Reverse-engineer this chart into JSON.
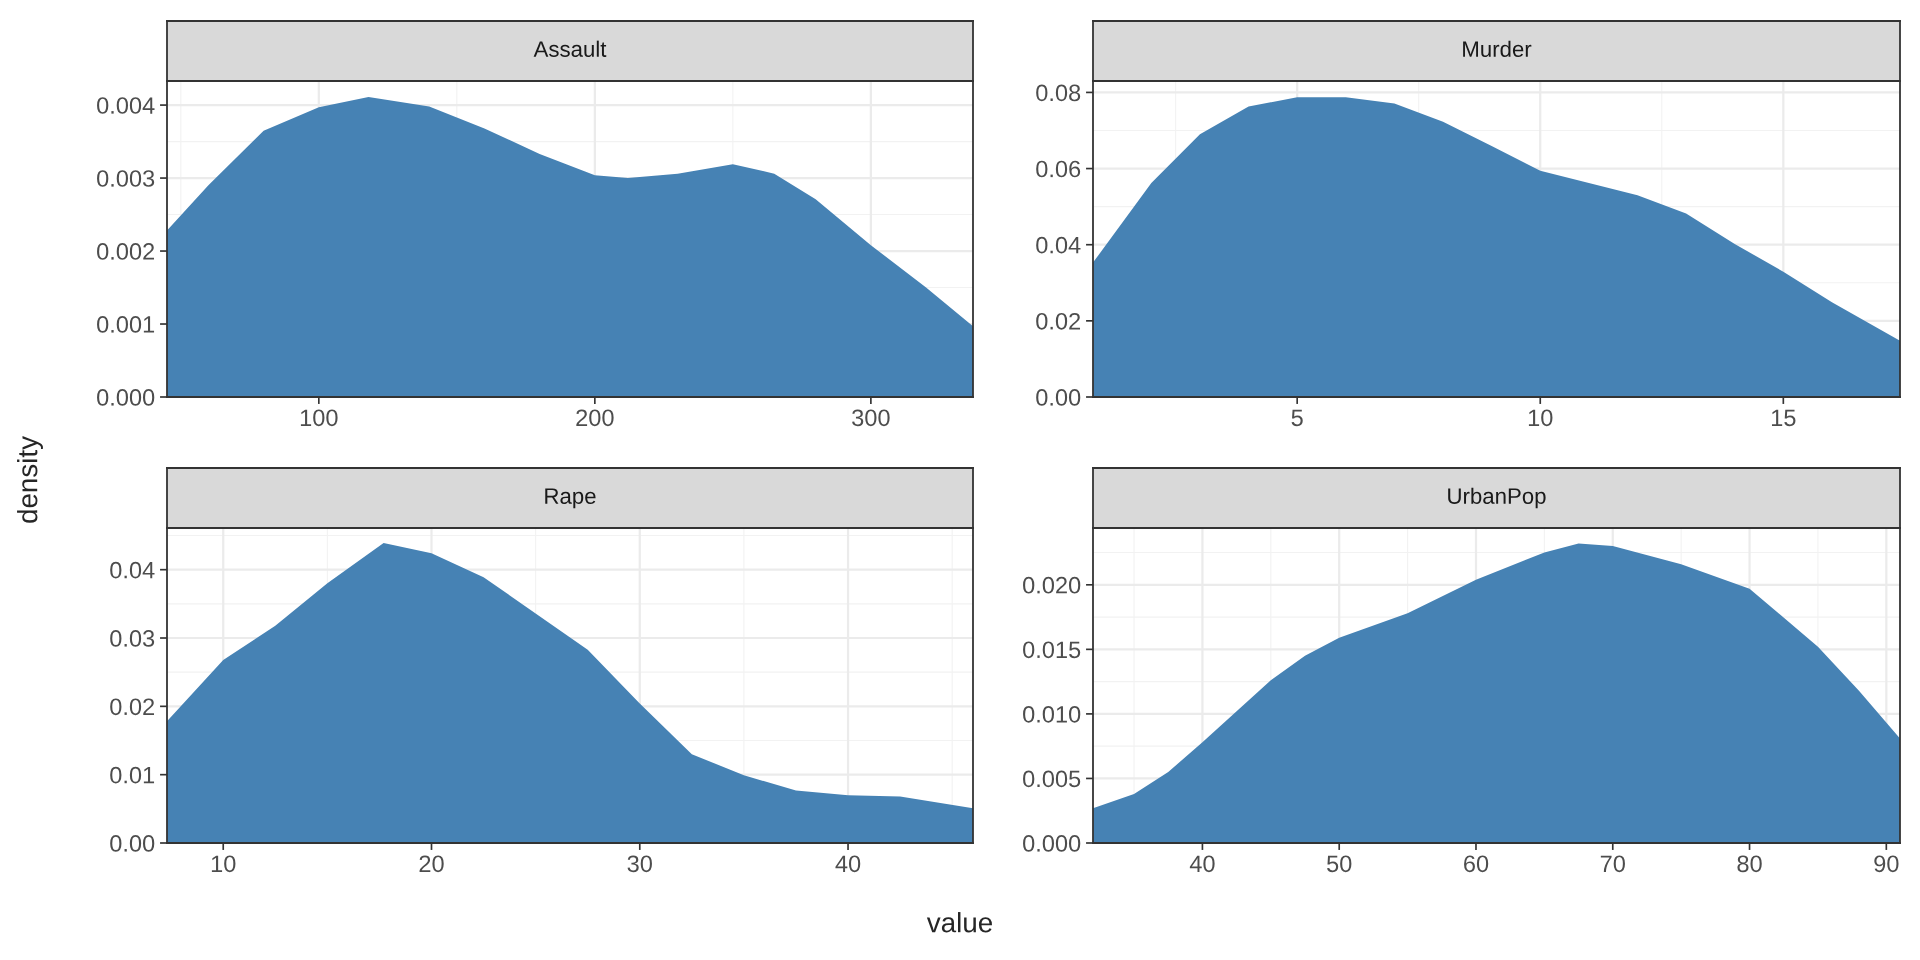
{
  "chart_data": [
    {
      "type": "area",
      "title": "Assault",
      "ylabel": "density",
      "color": "#4682b4",
      "grid": true,
      "xlim": [
        45,
        337
      ],
      "ylim": [
        0,
        0.00433
      ],
      "xticks": [
        100,
        200,
        300
      ],
      "yticks": [
        {
          "value": 0,
          "label": "0.000"
        },
        {
          "value": 0.001,
          "label": "0.001"
        },
        {
          "value": 0.002,
          "label": "0.002"
        },
        {
          "value": 0.003,
          "label": "0.003"
        },
        {
          "value": 0.004,
          "label": "0.004"
        }
      ],
      "x": [
        45,
        60,
        80,
        100,
        118,
        140,
        160,
        180,
        200,
        212,
        230,
        250,
        265,
        280,
        300,
        320,
        337
      ],
      "values": [
        0.00228,
        0.0029,
        0.00365,
        0.00397,
        0.00411,
        0.00398,
        0.00368,
        0.00333,
        0.00304,
        0.003,
        0.00306,
        0.00319,
        0.00306,
        0.00271,
        0.00208,
        0.0015,
        0.00097
      ]
    },
    {
      "type": "area",
      "title": "Murder",
      "color": "#4682b4",
      "grid": true,
      "xlim": [
        0.8,
        17.4
      ],
      "ylim": [
        0,
        0.083
      ],
      "xticks": [
        5,
        10,
        15
      ],
      "yticks": [
        {
          "value": 0,
          "label": "0.00"
        },
        {
          "value": 0.02,
          "label": "0.02"
        },
        {
          "value": 0.04,
          "label": "0.04"
        },
        {
          "value": 0.06,
          "label": "0.06"
        },
        {
          "value": 0.08,
          "label": "0.08"
        }
      ],
      "x": [
        0.8,
        2,
        3,
        4,
        5,
        6,
        7,
        8,
        9,
        10,
        11,
        12,
        13,
        14,
        15,
        16,
        17.4
      ],
      "values": [
        0.0353,
        0.0562,
        0.069,
        0.0763,
        0.0787,
        0.0787,
        0.0771,
        0.0723,
        0.0659,
        0.0594,
        0.0562,
        0.053,
        0.0482,
        0.0402,
        0.0329,
        0.0249,
        0.0148
      ]
    },
    {
      "type": "area",
      "title": "Rape",
      "xlabel": "value",
      "color": "#4682b4",
      "grid": true,
      "xlim": [
        7.3,
        46
      ],
      "ylim": [
        0,
        0.0461
      ],
      "xticks": [
        10,
        20,
        30,
        40
      ],
      "yticks": [
        {
          "value": 0,
          "label": "0.00"
        },
        {
          "value": 0.01,
          "label": "0.01"
        },
        {
          "value": 0.02,
          "label": "0.02"
        },
        {
          "value": 0.03,
          "label": "0.03"
        },
        {
          "value": 0.04,
          "label": "0.04"
        }
      ],
      "x": [
        7.3,
        10,
        12.5,
        15,
        17.7,
        20,
        22.5,
        25,
        27.5,
        30,
        32.5,
        35,
        37.5,
        40,
        42.5,
        46
      ],
      "values": [
        0.0178,
        0.0268,
        0.0318,
        0.038,
        0.0439,
        0.0424,
        0.0389,
        0.0336,
        0.0283,
        0.0204,
        0.013,
        0.0099,
        0.0077,
        0.007,
        0.0068,
        0.0051
      ]
    },
    {
      "type": "area",
      "title": "UrbanPop",
      "color": "#4682b4",
      "grid": true,
      "xlim": [
        32,
        91
      ],
      "ylim": [
        0,
        0.0244
      ],
      "xticks": [
        40,
        50,
        60,
        70,
        80,
        90
      ],
      "yticks": [
        {
          "value": 0,
          "label": "0.000"
        },
        {
          "value": 0.005,
          "label": "0.005"
        },
        {
          "value": 0.01,
          "label": "0.010"
        },
        {
          "value": 0.015,
          "label": "0.015"
        },
        {
          "value": 0.02,
          "label": "0.020"
        }
      ],
      "x": [
        32,
        35,
        37.5,
        40,
        42.5,
        45,
        47.5,
        50,
        55,
        60,
        65,
        67.5,
        70,
        75,
        80,
        85,
        88,
        91
      ],
      "values": [
        0.0027,
        0.0038,
        0.0055,
        0.0078,
        0.0102,
        0.0126,
        0.0145,
        0.0159,
        0.0178,
        0.0204,
        0.0225,
        0.0232,
        0.023,
        0.0216,
        0.0197,
        0.0152,
        0.0118,
        0.0081
      ]
    }
  ]
}
